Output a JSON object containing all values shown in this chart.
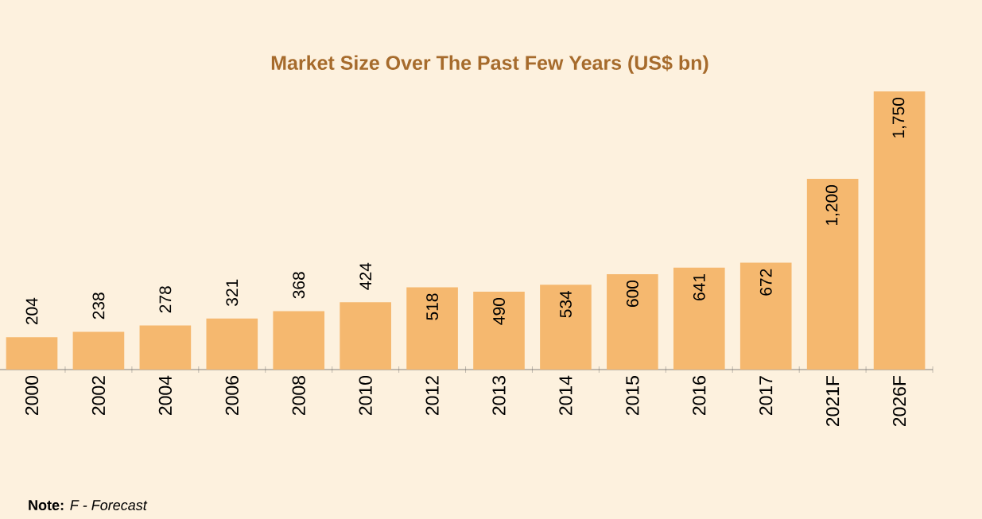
{
  "chart_data": {
    "type": "bar",
    "title": "Market Size Over The Past Few Years (US$ bn)",
    "categories": [
      "2000",
      "2002",
      "2004",
      "2006",
      "2008",
      "2010",
      "2012",
      "2013",
      "2014",
      "2015",
      "2016",
      "2017",
      "2021F",
      "2026F"
    ],
    "values": [
      204,
      238,
      278,
      321,
      368,
      424,
      518,
      490,
      534,
      600,
      641,
      672,
      1200,
      1750
    ],
    "value_labels": [
      "204",
      "238",
      "278",
      "321",
      "368",
      "424",
      "518",
      "490",
      "534",
      "600",
      "641",
      "672",
      "1,200",
      "1,750"
    ],
    "color": "#f5b86f",
    "annotations": [
      "**Note:** *F - Forecast*"
    ]
  }
}
